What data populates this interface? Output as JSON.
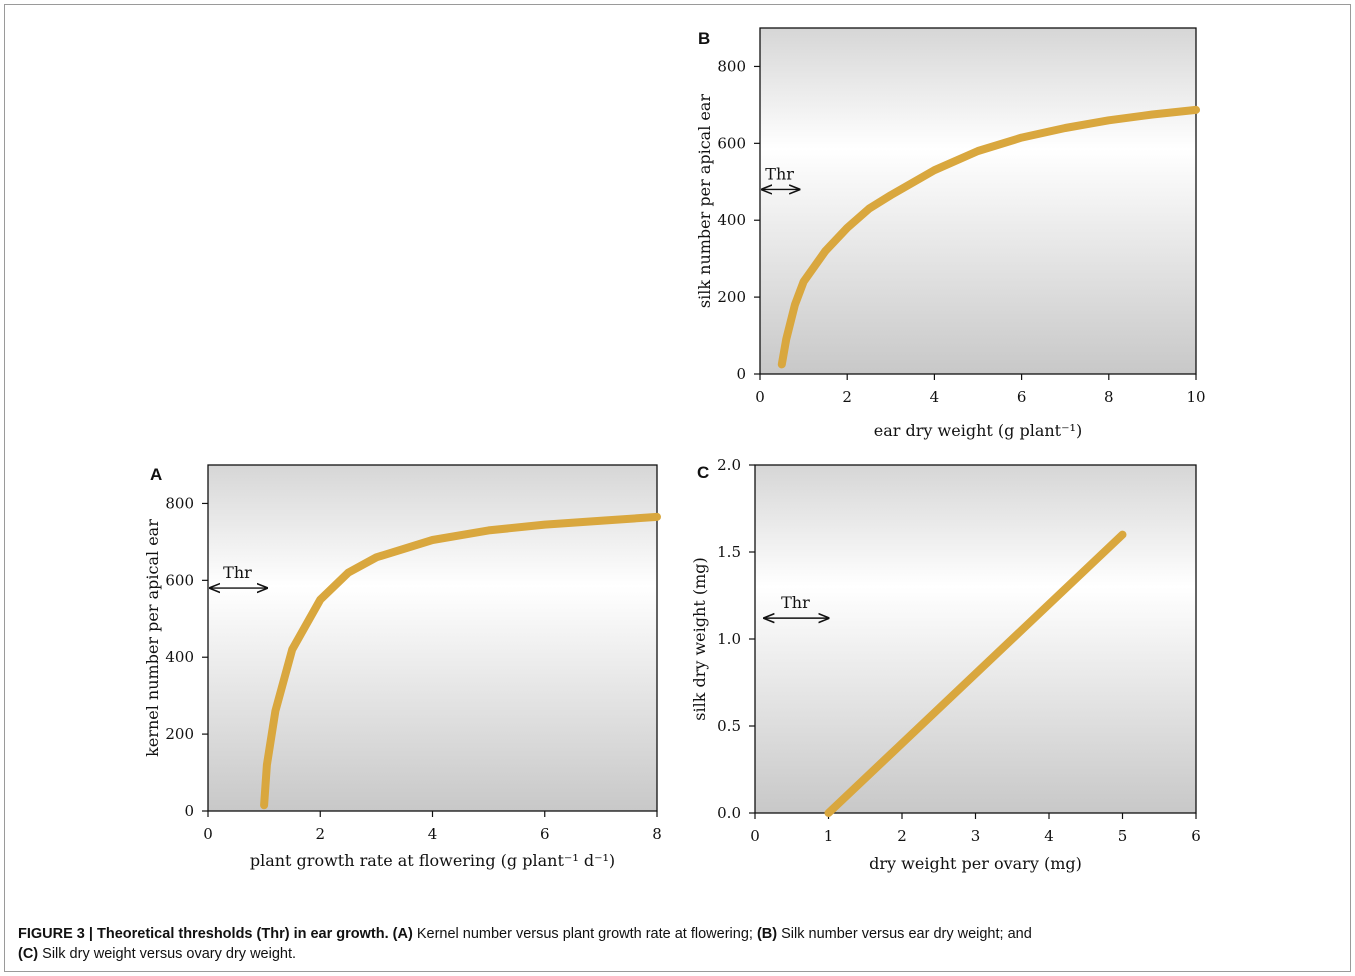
{
  "colors": {
    "curve": "#D9A73E",
    "plot_bg_top": "#d6d6d6",
    "plot_bg_mid": "#ffffff"
  },
  "caption": {
    "figure_label": "FIGURE 3 | Theoretical thresholds (Thr) in ear growth.",
    "a_tag": "(A)",
    "a_text": " Kernel number versus plant growth rate at flowering; ",
    "b_tag": "(B)",
    "b_text": " Silk number versus ear dry weight; and ",
    "c_tag": "(C)",
    "c_text": " Silk dry weight versus ovary dry weight."
  },
  "chart_data": [
    {
      "id": "A",
      "type": "line",
      "panel_label": "A",
      "xlabel": "plant growth rate at flowering (g plant⁻¹ d⁻¹)",
      "ylabel": "kernel number per apical ear",
      "xlim": [
        0,
        8
      ],
      "ylim": [
        0,
        900
      ],
      "xticks": [
        0,
        2,
        4,
        6,
        8
      ],
      "xtick_labels": [
        "0",
        "2",
        "4",
        "6",
        "8"
      ],
      "yticks": [
        0,
        200,
        400,
        600,
        800
      ],
      "ytick_labels": [
        "0",
        "200",
        "400",
        "600",
        "800"
      ],
      "threshold": {
        "label": "Thr",
        "y": 580,
        "x_from": 0,
        "x_to": 1.05
      },
      "series": [
        {
          "x": [
            1.0,
            1.05,
            1.2,
            1.5,
            2.0,
            2.5,
            3.0,
            4.0,
            5.0,
            6.0,
            7.0,
            8.0
          ],
          "y": [
            15,
            120,
            260,
            420,
            550,
            620,
            660,
            705,
            730,
            745,
            755,
            765
          ]
        }
      ]
    },
    {
      "id": "B",
      "type": "line",
      "panel_label": "B",
      "xlabel": "ear dry weight (g plant⁻¹)",
      "ylabel": "silk number per apical ear",
      "xlim": [
        0,
        10
      ],
      "ylim": [
        0,
        900
      ],
      "xticks": [
        0,
        2,
        4,
        6,
        8,
        10
      ],
      "xtick_labels": [
        "0",
        "2",
        "4",
        "6",
        "8",
        "10"
      ],
      "yticks": [
        0,
        200,
        400,
        600,
        800
      ],
      "ytick_labels": [
        "0",
        "200",
        "400",
        "600",
        "800"
      ],
      "threshold": {
        "label": "Thr",
        "y": 480,
        "x_from": 0,
        "x_to": 0.9
      },
      "series": [
        {
          "x": [
            0.5,
            0.6,
            0.8,
            1.0,
            1.5,
            2.0,
            2.5,
            3.0,
            4.0,
            5.0,
            6.0,
            7.0,
            8.0,
            9.0,
            10.0
          ],
          "y": [
            25,
            90,
            180,
            240,
            320,
            380,
            430,
            465,
            530,
            580,
            615,
            640,
            660,
            675,
            687
          ]
        }
      ]
    },
    {
      "id": "C",
      "type": "line",
      "panel_label": "C",
      "xlabel": "dry weight per ovary (mg)",
      "ylabel": "silk dry weight (mg)",
      "xlim": [
        0,
        6
      ],
      "ylim": [
        0,
        2.0
      ],
      "xticks": [
        0,
        1,
        2,
        3,
        4,
        5,
        6
      ],
      "xtick_labels": [
        "0",
        "1",
        "2",
        "3",
        "4",
        "5",
        "6"
      ],
      "yticks": [
        0,
        0.5,
        1.0,
        1.5,
        2.0
      ],
      "ytick_labels": [
        "0.0",
        "0.5",
        "1.0",
        "1.5",
        "2.0"
      ],
      "threshold": {
        "label": "Thr",
        "y": 1.12,
        "x_from": 0.1,
        "x_to": 1.0
      },
      "series": [
        {
          "x": [
            1.0,
            5.0
          ],
          "y": [
            0.0,
            1.6
          ]
        }
      ]
    }
  ]
}
